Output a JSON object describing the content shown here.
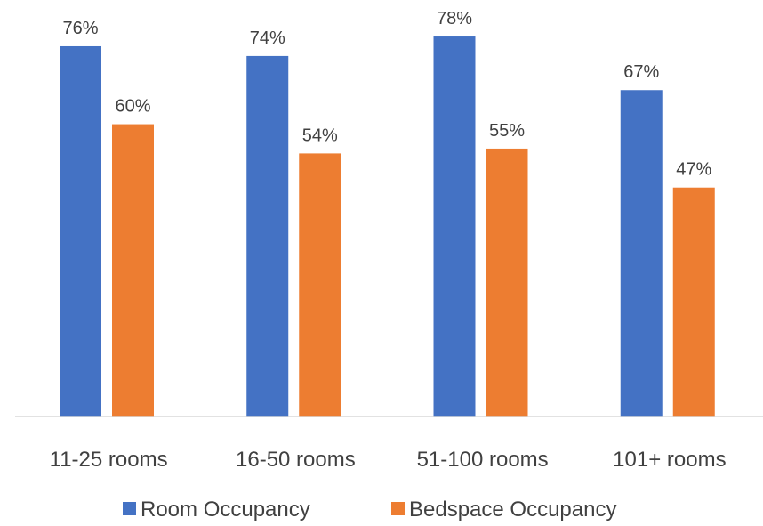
{
  "chart_data": {
    "type": "bar",
    "categories": [
      "11-25 rooms",
      "16-50 rooms",
      "51-100 rooms",
      "101+ rooms"
    ],
    "series": [
      {
        "name": "Room Occupancy",
        "values": [
          76,
          74,
          78,
          67
        ],
        "color": "#4472C4"
      },
      {
        "name": "Bedspace Occupancy",
        "values": [
          60,
          54,
          55,
          47
        ],
        "color": "#ED7D31"
      }
    ],
    "value_suffix": "%",
    "ylim": [
      0,
      80
    ],
    "grid": false,
    "legend_position": "bottom"
  }
}
